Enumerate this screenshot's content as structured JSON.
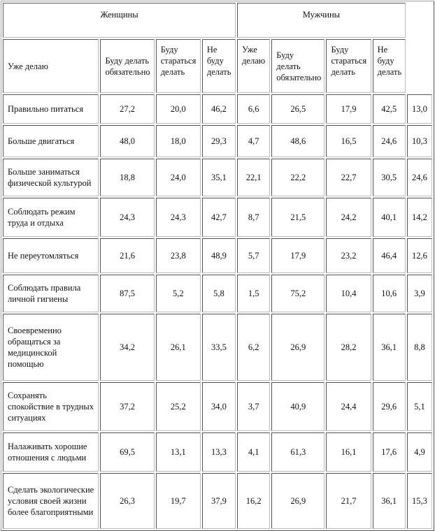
{
  "groups": [
    "Женщины",
    "Мужчины"
  ],
  "subheaders": [
    "Уже делаю",
    "Буду делать обязательно",
    "Буду стараться делать",
    "Не буду делать",
    "Уже делаю",
    "Буду делать обязательно",
    "Буду стараться делать",
    "Не буду делать"
  ],
  "rows": [
    {
      "label": "Правильно питаться",
      "values": [
        "27,2",
        "20,0",
        "46,2",
        "6,6",
        "26,5",
        "17,9",
        "42,5",
        "13,0"
      ]
    },
    {
      "label": "Больше двигаться",
      "values": [
        "48,0",
        "18,0",
        "29,3",
        "4,7",
        "48,6",
        "16,5",
        "24,6",
        "10,3"
      ]
    },
    {
      "label": "Больше заниматься физической культурой",
      "values": [
        "18,8",
        "24,0",
        "35,1",
        "22,1",
        "22,2",
        "22,7",
        "30,5",
        "24,6"
      ]
    },
    {
      "label": "Соблюдать режим труда и отдыха",
      "values": [
        "24,3",
        "24,3",
        "42,7",
        "8,7",
        "21,5",
        "24,2",
        "40,1",
        "14,2"
      ]
    },
    {
      "label": "Не переутомляться",
      "values": [
        "21,6",
        "23,8",
        "48,9",
        "5,7",
        "17,9",
        "23,2",
        "46,4",
        "12,6"
      ]
    },
    {
      "label": "Соблюдать правила личной гигиены",
      "values": [
        "87,5",
        "5,2",
        "5,8",
        "1,5",
        "75,2",
        "10,4",
        "10,6",
        "3,9"
      ]
    },
    {
      "label": "Своевременно обращаться за медицинской помощью",
      "values": [
        "34,2",
        "26,1",
        "33,5",
        "6,2",
        "26,9",
        "28,2",
        "36,1",
        "8,8"
      ]
    },
    {
      "label": "Сохранять спокойствие в трудных ситуациях",
      "values": [
        "37,2",
        "25,2",
        "34,0",
        "3,7",
        "40,9",
        "24,4",
        "29,6",
        "5,1"
      ]
    },
    {
      "label": "Налаживать хорошие отношения с людьми",
      "values": [
        "69,5",
        "13,1",
        "13,3",
        "4,1",
        "61,3",
        "16,1",
        "17,6",
        "4,9"
      ]
    },
    {
      "label": "Сделать экологические условия своей жизни более благоприятными",
      "values": [
        "26,3",
        "19,7",
        "37,9",
        "16,2",
        "26,9",
        "21,7",
        "36,1",
        "15,3"
      ]
    }
  ]
}
